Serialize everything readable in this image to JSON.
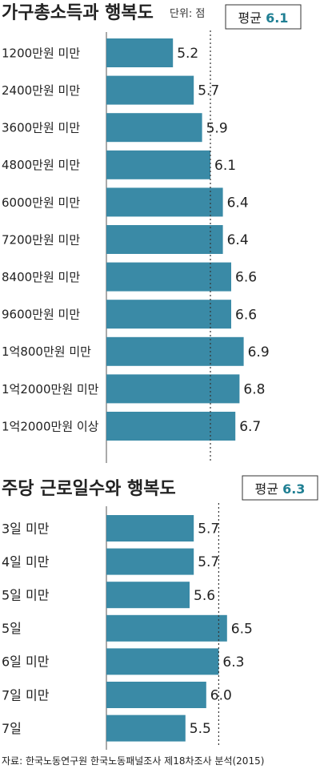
{
  "colors": {
    "bar": "#3a8aa6",
    "accent": "#1f7f93",
    "axis": "#555555",
    "text": "#222222"
  },
  "chart_data": [
    {
      "type": "bar",
      "orientation": "horizontal",
      "title": "가구총소득과 행복도",
      "unit": "단위: 점",
      "average": {
        "label": "평균",
        "value": 6.1
      },
      "categories": [
        "1200만원 미만",
        "2400만원 미만",
        "3600만원 미만",
        "4800만원 미만",
        "6000만원 미만",
        "7200만원 미만",
        "8400만원 미만",
        "9600만원 미만",
        "1억800만원 미만",
        "1억2000만원 미만",
        "1억2000만원 이상"
      ],
      "values": [
        5.2,
        5.7,
        5.9,
        6.1,
        6.4,
        6.4,
        6.6,
        6.6,
        6.9,
        6.8,
        6.7
      ],
      "labels": [
        "5.2",
        "5.7",
        "5.9",
        "6.1",
        "6.4",
        "6.4",
        "6.6",
        "6.6",
        "6.9",
        "6.8",
        "6.7"
      ]
    },
    {
      "type": "bar",
      "orientation": "horizontal",
      "title": "주당 근로일수와 행복도",
      "average": {
        "label": "평균",
        "value": 6.3
      },
      "categories": [
        "3일 미만",
        "4일 미만",
        "5일 미만",
        "5일",
        "6일 미만",
        "7일 미만",
        "7일"
      ],
      "values": [
        5.7,
        5.7,
        5.6,
        6.5,
        6.3,
        6.0,
        5.5
      ],
      "labels": [
        "5.7",
        "5.7",
        "5.6",
        "6.5",
        "6.3",
        "6.0",
        "5.5"
      ]
    }
  ],
  "source": "자료: 한국노동연구원 한국노동패널조사 제18차조사 분석(2015)"
}
